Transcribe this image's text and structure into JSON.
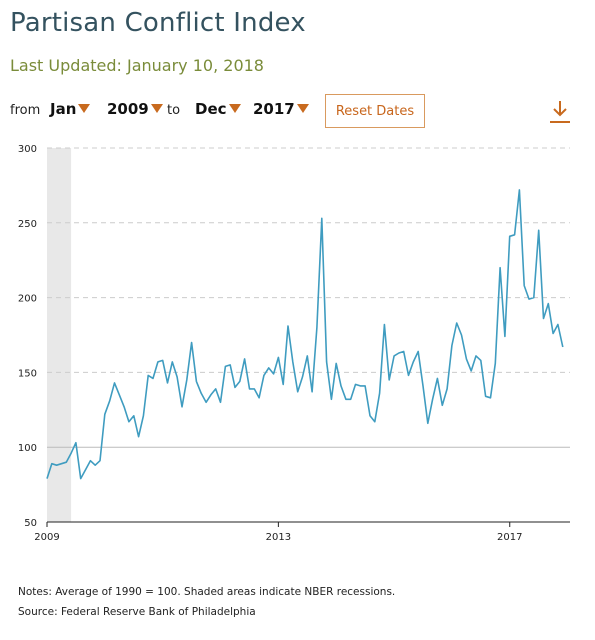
{
  "header": {
    "title": "Partisan Conflict Index",
    "subtitle": "Last Updated: January 10, 2018"
  },
  "controls": {
    "from_label": "from",
    "to_label": "to",
    "from_month": "Jan",
    "from_year": "2009",
    "to_month": "Dec",
    "to_year": "2017",
    "reset_label": "Reset Dates",
    "accent_color": "#c86a1e"
  },
  "icons": {
    "download": "download-icon"
  },
  "footer": {
    "notes": "Notes: Average of 1990 = 100. Shaded areas indicate NBER recessions.",
    "source": "Source: Federal Reserve Bank of Philadelphia"
  },
  "chart_data": {
    "type": "line",
    "title": "",
    "xlabel": "",
    "ylabel": "",
    "ylim": [
      50,
      300
    ],
    "yticks": [
      50,
      100,
      150,
      200,
      250,
      300
    ],
    "xticks": [
      "2009",
      "2013",
      "2017"
    ],
    "grid": true,
    "line_color": "#3f9cc0",
    "recession_color": "#e8e8e8",
    "recession_shading": [
      {
        "start": "2009-01",
        "end": "2009-06"
      }
    ],
    "series": [
      {
        "x": [
          "2009-01",
          "2009-02",
          "2009-03",
          "2009-04",
          "2009-05",
          "2009-06",
          "2009-07",
          "2009-08",
          "2009-09",
          "2009-10",
          "2009-11",
          "2009-12",
          "2010-01",
          "2010-02",
          "2010-03",
          "2010-04",
          "2010-05",
          "2010-06",
          "2010-07",
          "2010-08",
          "2010-09",
          "2010-10",
          "2010-11",
          "2010-12",
          "2011-01",
          "2011-02",
          "2011-03",
          "2011-04",
          "2011-05",
          "2011-06",
          "2011-07",
          "2011-08",
          "2011-09",
          "2011-10",
          "2011-11",
          "2011-12",
          "2012-01",
          "2012-02",
          "2012-03",
          "2012-04",
          "2012-05",
          "2012-06",
          "2012-07",
          "2012-08",
          "2012-09",
          "2012-10",
          "2012-11",
          "2012-12",
          "2013-01",
          "2013-02",
          "2013-03",
          "2013-04",
          "2013-05",
          "2013-06",
          "2013-07",
          "2013-08",
          "2013-09",
          "2013-10",
          "2013-11",
          "2013-12",
          "2014-01",
          "2014-02",
          "2014-03",
          "2014-04",
          "2014-05",
          "2014-06",
          "2014-07",
          "2014-08",
          "2014-09",
          "2014-10",
          "2014-11",
          "2014-12",
          "2015-01",
          "2015-02",
          "2015-03",
          "2015-04",
          "2015-05",
          "2015-06",
          "2015-07",
          "2015-08",
          "2015-09",
          "2015-10",
          "2015-11",
          "2015-12",
          "2016-01",
          "2016-02",
          "2016-03",
          "2016-04",
          "2016-05",
          "2016-06",
          "2016-07",
          "2016-08",
          "2016-09",
          "2016-10",
          "2016-11",
          "2016-12",
          "2017-01",
          "2017-02",
          "2017-03",
          "2017-04",
          "2017-05",
          "2017-06",
          "2017-07",
          "2017-08",
          "2017-09",
          "2017-10",
          "2017-11",
          "2017-12"
        ],
        "values": [
          79,
          89,
          88,
          89,
          90,
          96,
          103,
          79,
          85,
          91,
          88,
          91,
          122,
          131,
          143,
          135,
          127,
          117,
          121,
          107,
          121,
          148,
          146,
          157,
          158,
          143,
          157,
          147,
          127,
          145,
          170,
          144,
          136,
          130,
          135,
          139,
          130,
          154,
          155,
          140,
          144,
          159,
          139,
          139,
          133,
          148,
          153,
          149,
          160,
          142,
          181,
          157,
          137,
          147,
          161,
          137,
          180,
          253,
          157,
          132,
          156,
          141,
          132,
          132,
          142,
          141,
          141,
          121,
          117,
          136,
          182,
          145,
          161,
          163,
          164,
          148,
          157,
          164,
          141,
          116,
          132,
          146,
          128,
          139,
          168,
          183,
          175,
          159,
          151,
          161,
          158,
          134,
          133,
          156,
          220,
          174,
          241,
          242,
          272,
          208,
          199,
          200,
          245,
          186,
          196,
          176,
          182,
          167
        ]
      }
    ]
  }
}
